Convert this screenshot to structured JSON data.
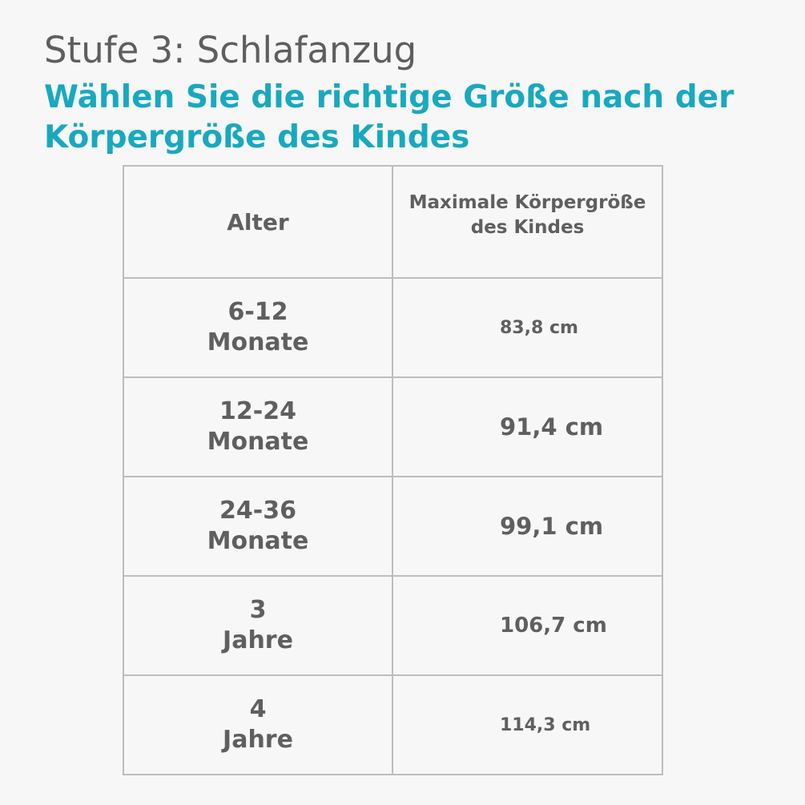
{
  "header": {
    "step_title": "Stufe 3: Schlafanzug",
    "subtitle_line1": "Wählen Sie die richtige Größe nach der",
    "subtitle_line2": "Körpergröße des Kindes"
  },
  "table": {
    "headers": {
      "age": "Alter",
      "height_line1": "Maximale Körpergröße",
      "height_line2": "des Kindes"
    },
    "rows": [
      {
        "age_line1": "6-12",
        "age_line2": "Monate",
        "height": "83,8 cm"
      },
      {
        "age_line1": "12-24",
        "age_line2": "Monate",
        "height": "91,4 cm"
      },
      {
        "age_line1": "24-36",
        "age_line2": "Monate",
        "height": "99,1 cm"
      },
      {
        "age_line1": "3",
        "age_line2": "Jahre",
        "height": "106,7 cm"
      },
      {
        "age_line1": "4",
        "age_line2": "Jahre",
        "height": "114,3 cm"
      }
    ]
  },
  "colors": {
    "title_gray": "#5e5e5e",
    "accent_teal": "#18a9bf",
    "table_text": "#5f5f5f",
    "border": "#bdbdbd",
    "background": "#f7f7f7"
  }
}
